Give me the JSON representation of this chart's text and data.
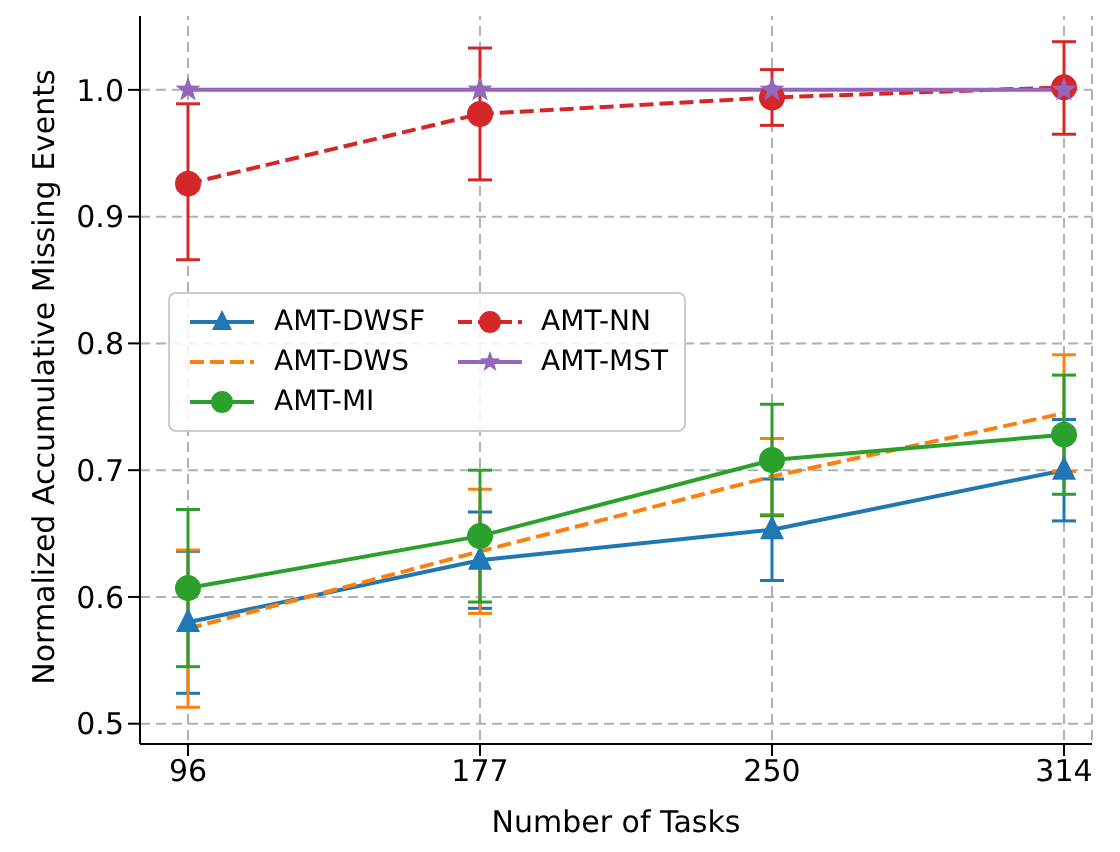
{
  "chart_data": {
    "type": "line",
    "xlabel": "Number of Tasks",
    "ylabel": "Normalized Accumulative Missing Events",
    "categories": [
      "96",
      "177",
      "250",
      "314"
    ],
    "series": [
      {
        "name": "AMT-DWSF",
        "color": "#1f77b4",
        "marker": "triangle",
        "line_style": "solid",
        "values": [
          0.58,
          0.629,
          0.653,
          0.7
        ],
        "errors": [
          0.056,
          0.038,
          0.04,
          0.04
        ]
      },
      {
        "name": "AMT-DWS",
        "color": "#ff7f0e",
        "marker": "none",
        "line_style": "dashed",
        "values": [
          0.575,
          0.636,
          0.695,
          0.745
        ],
        "errors": [
          0.062,
          0.049,
          0.03,
          0.046
        ]
      },
      {
        "name": "AMT-MI",
        "color": "#2ca02c",
        "marker": "circle",
        "line_style": "solid",
        "values": [
          0.607,
          0.648,
          0.708,
          0.728
        ],
        "errors": [
          0.062,
          0.052,
          0.044,
          0.047
        ]
      },
      {
        "name": "AMT-NN",
        "color": "#d62728",
        "marker": "circle",
        "line_style": "dashed",
        "values": [
          0.926,
          0.981,
          0.994,
          1.002
        ],
        "errors": [
          [
            0.866,
            0.989
          ],
          [
            0.929,
            1.033
          ],
          [
            0.972,
            1.016
          ],
          [
            0.965,
            1.038
          ]
        ]
      },
      {
        "name": "AMT-MST",
        "color": "#9467bd",
        "marker": "star",
        "line_style": "solid",
        "values": [
          1.0,
          1.0,
          1.0,
          1.0
        ]
      }
    ],
    "ylim": [
      0.484,
      1.063
    ],
    "yticks": [
      0.5,
      0.6,
      0.7,
      0.8,
      0.9,
      {
        "value": 1,
        "label": "1.0"
      }
    ],
    "grid": true,
    "legend": "center left"
  }
}
